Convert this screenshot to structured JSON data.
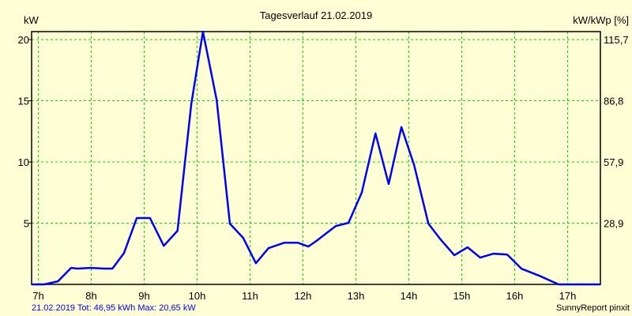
{
  "chart_data": {
    "type": "line",
    "title": "Tagesverlauf 21.02.2019",
    "ylabel": "kW",
    "ylabel_right": "kW/kWp [%]",
    "xlabel": "",
    "ylim": [
      0,
      20.65
    ],
    "xlim": [
      6.87,
      17.63
    ],
    "grid": true,
    "x_ticks": [
      7,
      8,
      9,
      10,
      11,
      12,
      13,
      14,
      15,
      16,
      17
    ],
    "x_tick_labels": [
      "7h",
      "8h",
      "9h",
      "10h",
      "11h",
      "12h",
      "13h",
      "14h",
      "15h",
      "16h",
      "17h"
    ],
    "y_ticks": [
      5,
      10,
      15,
      20
    ],
    "y_tick_labels": [
      "5",
      "10",
      "15",
      "20"
    ],
    "y_right_tick_labels": [
      "28,9",
      "57,9",
      "86,8",
      "115,7"
    ],
    "series": [
      {
        "name": "kW",
        "color": "#0000ff",
        "x": [
          6.87,
          7.11,
          7.37,
          7.62,
          7.74,
          7.99,
          8.25,
          8.4,
          8.62,
          8.86,
          9.11,
          9.37,
          9.63,
          9.89,
          10.11,
          10.37,
          10.62,
          10.87,
          11.11,
          11.35,
          11.65,
          11.9,
          12.1,
          12.25,
          12.62,
          12.86,
          13.11,
          13.37,
          13.62,
          13.86,
          14.1,
          14.37,
          14.6,
          14.86,
          15.11,
          15.35,
          15.6,
          15.86,
          16.13,
          16.47,
          16.83,
          17.63
        ],
        "values": [
          0,
          0,
          0.25,
          1.35,
          1.29,
          1.35,
          1.29,
          1.29,
          2.57,
          5.42,
          5.42,
          3.15,
          4.38,
          14.72,
          20.65,
          15.05,
          4.96,
          3.8,
          1.73,
          2.96,
          3.41,
          3.41,
          3.09,
          3.54,
          4.77,
          5.03,
          7.49,
          12.33,
          8.2,
          12.85,
          9.75,
          4.96,
          3.67,
          2.38,
          3.03,
          2.19,
          2.51,
          2.44,
          1.28,
          0.7,
          0,
          0
        ]
      }
    ],
    "footer_left": "21.02.2019 Tot: 46,95 kWh Max: 20,65 kW",
    "footer_right": "SunnyReport pinxit"
  },
  "colors": {
    "background": "#ffffd5",
    "grid": "#00e000",
    "line": "#0000ff",
    "footer": "#0000ff"
  }
}
